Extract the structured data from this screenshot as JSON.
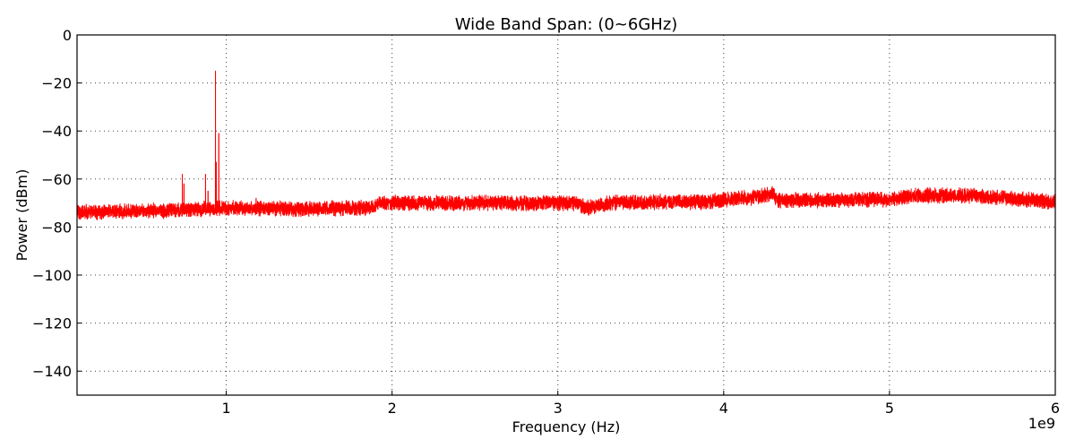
{
  "chart_data": {
    "type": "line",
    "title": "Wide Band    Span: (0~6GHz)",
    "xlabel": "Frequency (Hz)",
    "ylabel": "Power (dBm)",
    "x_offset_label": "1e9",
    "xlim": [
      100000000,
      6000000000
    ],
    "ylim": [
      -150,
      0
    ],
    "x_tick_values": [
      1000000000,
      2000000000,
      3000000000,
      4000000000,
      5000000000,
      6000000000
    ],
    "x_tick_labels": [
      "1",
      "2",
      "3",
      "4",
      "5",
      "6"
    ],
    "y_tick_values": [
      0,
      -20,
      -40,
      -60,
      -80,
      -100,
      -120,
      -140
    ],
    "y_tick_labels": [
      "0",
      "−20",
      "−40",
      "−60",
      "−80",
      "−100",
      "−120",
      "−140"
    ],
    "grid": true,
    "series": [
      {
        "color": "#ff0000",
        "baseline": [
          {
            "x": 100000000,
            "y": -74
          },
          {
            "x": 700000000,
            "y": -73
          },
          {
            "x": 1000000000,
            "y": -72
          },
          {
            "x": 1500000000,
            "y": -72.5
          },
          {
            "x": 1880000000,
            "y": -72
          },
          {
            "x": 1920000000,
            "y": -70
          },
          {
            "x": 2500000000,
            "y": -70
          },
          {
            "x": 3100000000,
            "y": -70
          },
          {
            "x": 3180000000,
            "y": -72
          },
          {
            "x": 3300000000,
            "y": -70
          },
          {
            "x": 3900000000,
            "y": -69.5
          },
          {
            "x": 4000000000,
            "y": -68.5
          },
          {
            "x": 4200000000,
            "y": -67.5
          },
          {
            "x": 4300000000,
            "y": -66
          },
          {
            "x": 4320000000,
            "y": -69
          },
          {
            "x": 5000000000,
            "y": -68.5
          },
          {
            "x": 5150000000,
            "y": -67
          },
          {
            "x": 5500000000,
            "y": -67
          },
          {
            "x": 6000000000,
            "y": -69.5
          }
        ],
        "peaks": [
          {
            "x": 735000000,
            "y": -58
          },
          {
            "x": 745000000,
            "y": -62
          },
          {
            "x": 875000000,
            "y": -58
          },
          {
            "x": 890000000,
            "y": -65
          },
          {
            "x": 935000000,
            "y": -15
          },
          {
            "x": 940000000,
            "y": -53
          },
          {
            "x": 955000000,
            "y": -41
          },
          {
            "x": 1180000000,
            "y": -68
          },
          {
            "x": 4450000000,
            "y": -66
          },
          {
            "x": 5220000000,
            "y": -65
          }
        ]
      }
    ]
  }
}
